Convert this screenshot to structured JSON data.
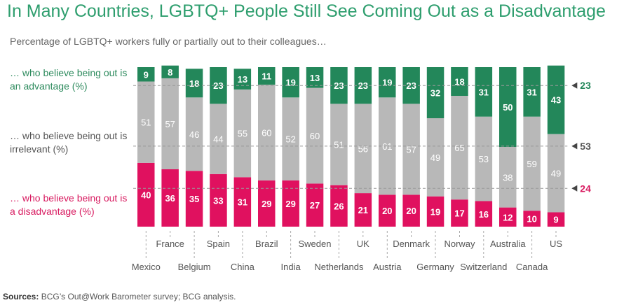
{
  "title": "In Many Countries, LGBTQ+ People Still See Coming Out as a Disadvantage",
  "subtitle": "Percentage of LGBTQ+ workers fully or partially out to their colleagues…",
  "legend": {
    "advantage": "… who believe being out is an advantage (%)",
    "irrelevant": "… who believe being out is irrelevant (%)",
    "disadvantage": "… who believe being out is a disadvantage (%)"
  },
  "sources": {
    "label": "Sources:",
    "text": "BCG’s Out@Work Barometer survey; BCG analysis."
  },
  "colors": {
    "advantage": "#23875a",
    "irrelevant": "#b8b8b8",
    "disadvantage": "#e0115f"
  },
  "chart_data": {
    "type": "bar",
    "stacked": true,
    "categories": [
      "Mexico",
      "France",
      "Belgium",
      "Spain",
      "China",
      "Brazil",
      "India",
      "Sweden",
      "Netherlands",
      "UK",
      "Austria",
      "Denmark",
      "Germany",
      "Norway",
      "Switzerland",
      "Australia",
      "Canada",
      "US"
    ],
    "series": [
      {
        "key": "disadvantage",
        "values": [
          40,
          36,
          35,
          33,
          31,
          29,
          29,
          27,
          26,
          21,
          20,
          20,
          19,
          17,
          16,
          12,
          10,
          9
        ]
      },
      {
        "key": "irrelevant",
        "values": [
          51,
          57,
          46,
          44,
          55,
          60,
          52,
          60,
          51,
          56,
          61,
          57,
          49,
          65,
          53,
          38,
          59,
          49
        ]
      },
      {
        "key": "advantage",
        "values": [
          9,
          8,
          18,
          23,
          13,
          11,
          19,
          13,
          23,
          23,
          19,
          23,
          32,
          18,
          31,
          50,
          31,
          43
        ]
      }
    ],
    "averages": [
      {
        "key": "advantage",
        "label": "23",
        "value": 23
      },
      {
        "key": "irrelevant",
        "label": "53",
        "value": 53
      },
      {
        "key": "disadvantage",
        "label": "24",
        "value": 24
      }
    ],
    "ylim": [
      0,
      100
    ],
    "grid": false,
    "legend_position": "left"
  }
}
